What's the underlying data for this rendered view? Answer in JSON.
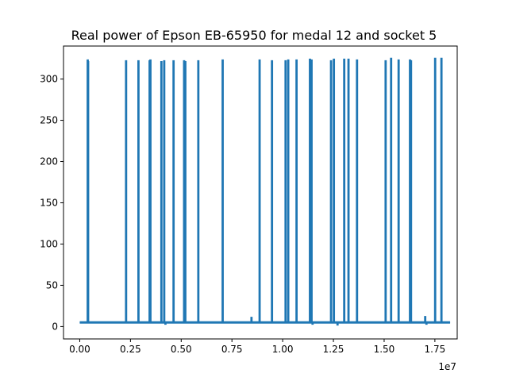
{
  "chart_data": {
    "type": "line",
    "title": "Real power of Epson EB-65950 for medal 12 and socket 5",
    "xlabel": "",
    "ylabel": "",
    "x_offset_label": "1e7",
    "xlim": [
      -0.08,
      1.86
    ],
    "ylim": [
      -15,
      340
    ],
    "x_ticks": [
      0.0,
      0.25,
      0.5,
      0.75,
      1.0,
      1.25,
      1.5,
      1.75
    ],
    "x_tick_labels": [
      "0.00",
      "0.25",
      "0.50",
      "0.75",
      "1.00",
      "1.25",
      "1.50",
      "1.75"
    ],
    "y_ticks": [
      0,
      50,
      100,
      150,
      200,
      250,
      300
    ],
    "y_tick_labels": [
      "0",
      "50",
      "100",
      "150",
      "200",
      "250",
      "300"
    ],
    "grid": false,
    "line_color": "#1f77b4",
    "baseline_value": 5,
    "x_start": 0.0,
    "x_end": 1.825,
    "series": [
      {
        "name": "",
        "spikes": [
          {
            "x": 0.037,
            "y": 323
          },
          {
            "x": 0.039,
            "y": 321
          },
          {
            "x": 0.226,
            "y": 322
          },
          {
            "x": 0.287,
            "y": 322
          },
          {
            "x": 0.342,
            "y": 322
          },
          {
            "x": 0.346,
            "y": 323
          },
          {
            "x": 0.4,
            "y": 321
          },
          {
            "x": 0.414,
            "y": 322
          },
          {
            "x": 0.46,
            "y": 322
          },
          {
            "x": 0.512,
            "y": 322
          },
          {
            "x": 0.518,
            "y": 321
          },
          {
            "x": 0.582,
            "y": 322
          },
          {
            "x": 0.702,
            "y": 323
          },
          {
            "x": 0.884,
            "y": 323
          },
          {
            "x": 0.945,
            "y": 322
          },
          {
            "x": 1.012,
            "y": 322
          },
          {
            "x": 1.025,
            "y": 323
          },
          {
            "x": 1.066,
            "y": 323
          },
          {
            "x": 1.132,
            "y": 324
          },
          {
            "x": 1.14,
            "y": 323
          },
          {
            "x": 1.236,
            "y": 322
          },
          {
            "x": 1.25,
            "y": 324
          },
          {
            "x": 1.301,
            "y": 324
          },
          {
            "x": 1.322,
            "y": 324
          },
          {
            "x": 1.364,
            "y": 323
          },
          {
            "x": 1.505,
            "y": 322
          },
          {
            "x": 1.532,
            "y": 325
          },
          {
            "x": 1.569,
            "y": 323
          },
          {
            "x": 1.625,
            "y": 323
          },
          {
            "x": 1.63,
            "y": 322
          },
          {
            "x": 1.749,
            "y": 325
          },
          {
            "x": 1.78,
            "y": 325
          }
        ],
        "small_spikes": [
          {
            "x": 0.844,
            "y": 11
          },
          {
            "x": 1.7,
            "y": 12
          }
        ],
        "dips": [
          {
            "x": 0.42,
            "y": 3
          },
          {
            "x": 1.145,
            "y": 3
          },
          {
            "x": 1.268,
            "y": 2
          },
          {
            "x": 1.706,
            "y": 3
          }
        ]
      }
    ]
  }
}
